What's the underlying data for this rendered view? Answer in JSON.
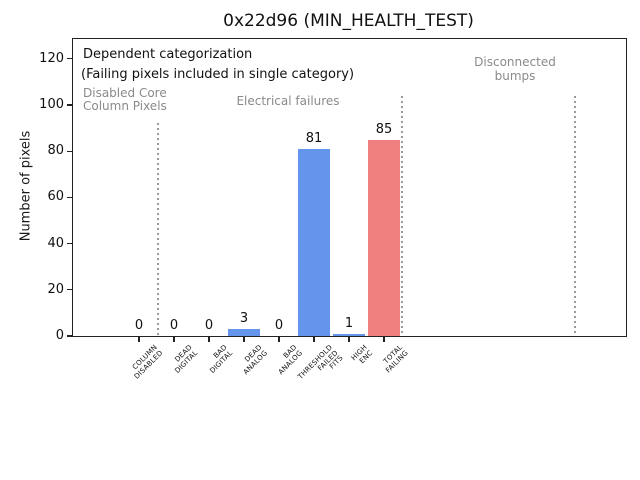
{
  "chart_data": {
    "type": "bar",
    "title": "0x22d96 (MIN_HEALTH_TEST)",
    "xlabel": "",
    "ylabel": "Number of pixels",
    "categories": [
      "COLUMN\nDISABLED",
      "DEAD\nDIGITAL",
      "BAD\nDIGITAL",
      "DEAD\nANALOG",
      "BAD\nANALOG",
      "THRESHOLD\nFAILED\nFITS",
      "HIGH\nENC",
      "TOTAL\nFAILING"
    ],
    "values": [
      0,
      0,
      0,
      3,
      0,
      81,
      1,
      85
    ],
    "bar_colors": [
      "#6495ed",
      "#6495ed",
      "#6495ed",
      "#6495ed",
      "#6495ed",
      "#6495ed",
      "#6495ed",
      "#f08080"
    ],
    "y_ticks": [
      0,
      20,
      40,
      60,
      80,
      100,
      120
    ],
    "ylim": [
      0,
      128
    ],
    "grid": false,
    "legend": "none",
    "annotations": {
      "note_line1": "Dependent categorization",
      "note_line2": "(Failing pixels included in single category)",
      "regions": [
        {
          "label": "Disabled Core\nColumn Pixels"
        },
        {
          "label": "Electrical failures"
        },
        {
          "label": "Disconnected\nbumps"
        }
      ]
    },
    "colors": {
      "bar_blue": "#6495ed",
      "bar_total_red": "#f08080",
      "annotation_gray": "#8a8a8a",
      "separator_gray": "#999999"
    }
  }
}
